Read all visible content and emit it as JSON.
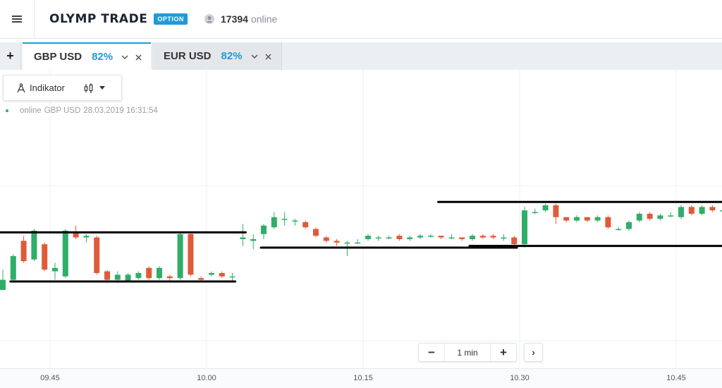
{
  "header": {
    "menu_icon": "hamburger-icon",
    "logo_text": "OLYMP TRADE",
    "logo_badge": "OPTION",
    "online_icon": "user-icon",
    "online_count": "17394",
    "online_label": "online"
  },
  "tabs": {
    "add_label": "+",
    "items": [
      {
        "pair": "GBP USD",
        "payout": "82%",
        "active": true
      },
      {
        "pair": "EUR USD",
        "payout": "82%",
        "active": false
      }
    ],
    "chevron_icon": "chevron-down-icon",
    "close_icon": "close-icon"
  },
  "toolbar": {
    "indicator_label": "Indikator",
    "indicator_icon": "compass-icon",
    "chart_type_icon": "candlestick-icon"
  },
  "info": {
    "status": "online",
    "pair": "GBP USD",
    "datetime": "28.03.2019 16:31:54"
  },
  "zoom": {
    "minus_label": "−",
    "timeframe": "1 min",
    "plus_label": "+",
    "next_label": "›"
  },
  "colors": {
    "accent": "#1f9ad6",
    "bull": "#2fae6a",
    "bear": "#e05a3a",
    "support_resistance": "#000000"
  },
  "chart_data": {
    "type": "candlestick",
    "pair": "GBP USD",
    "timeframe": "1 min",
    "x_ticks": [
      "09.45",
      "10.00",
      "10.15",
      "10.30",
      "10.45"
    ],
    "ylim": [
      0,
      100
    ],
    "candles": [
      [
        20,
        26,
        21,
        32
      ],
      [
        26,
        40,
        25,
        41
      ],
      [
        49,
        37,
        36,
        52
      ],
      [
        38,
        55,
        37,
        56
      ],
      [
        47,
        32,
        31,
        48
      ],
      [
        31,
        33,
        26,
        36
      ],
      [
        28,
        55,
        27,
        56
      ],
      [
        54,
        51,
        50,
        58
      ],
      [
        51,
        52,
        48,
        53
      ],
      [
        51,
        30,
        29,
        52
      ],
      [
        31,
        26,
        24,
        32
      ],
      [
        26,
        29,
        24,
        31
      ],
      [
        25,
        29,
        25,
        30
      ],
      [
        27,
        30,
        26,
        31
      ],
      [
        33,
        27,
        26,
        34
      ],
      [
        27,
        33,
        26,
        34
      ],
      [
        28,
        27,
        25,
        29
      ],
      [
        27,
        53,
        26,
        54
      ],
      [
        53,
        29,
        28,
        54
      ],
      [
        27,
        26,
        25,
        28
      ],
      [
        29,
        30,
        28,
        31
      ],
      [
        30,
        28,
        27,
        31
      ],
      [
        28,
        28,
        25,
        30
      ],
      [
        50,
        51,
        46,
        59
      ],
      [
        49,
        50,
        44,
        53
      ],
      [
        53,
        58,
        50,
        59
      ],
      [
        57,
        63,
        56,
        66
      ],
      [
        62,
        62,
        58,
        66
      ],
      [
        61,
        61,
        58,
        62
      ],
      [
        60,
        57,
        56,
        61
      ],
      [
        56,
        52,
        51,
        57
      ],
      [
        51,
        49,
        48,
        52
      ],
      [
        49,
        48,
        46,
        50
      ],
      [
        48,
        48,
        40,
        49
      ],
      [
        48,
        48,
        48,
        50
      ],
      [
        50,
        52,
        49,
        53
      ],
      [
        51,
        51,
        49,
        52
      ],
      [
        51,
        51,
        50,
        52
      ],
      [
        52,
        50,
        49,
        53
      ],
      [
        50,
        51,
        49,
        52
      ],
      [
        51,
        52,
        50,
        53
      ],
      [
        52,
        52,
        51,
        53
      ],
      [
        52,
        51,
        50,
        52
      ],
      [
        51,
        51,
        50,
        53
      ],
      [
        51,
        50,
        49,
        51
      ],
      [
        50,
        52,
        49,
        53
      ],
      [
        52,
        51,
        50,
        53
      ],
      [
        52,
        51,
        50,
        53
      ],
      [
        51,
        51,
        49,
        53
      ],
      [
        51,
        47,
        46,
        52
      ],
      [
        47,
        67,
        45,
        69
      ],
      [
        66,
        66,
        65,
        68
      ],
      [
        67,
        70,
        66,
        71
      ],
      [
        70,
        63,
        59,
        71
      ],
      [
        63,
        61,
        60,
        63
      ],
      [
        61,
        63,
        60,
        64
      ],
      [
        63,
        61,
        60,
        63
      ],
      [
        61,
        63,
        60,
        64
      ],
      [
        63,
        57,
        56,
        64
      ],
      [
        56,
        56,
        55,
        57
      ],
      [
        56,
        60,
        55,
        61
      ],
      [
        61,
        65,
        60,
        66
      ],
      [
        65,
        62,
        61,
        66
      ],
      [
        62,
        64,
        61,
        65
      ],
      [
        64,
        64,
        63,
        66
      ],
      [
        63,
        69,
        62,
        70
      ],
      [
        69,
        65,
        64,
        70
      ],
      [
        65,
        69,
        64,
        70
      ],
      [
        69,
        67,
        66,
        70
      ],
      [
        67,
        67,
        62,
        68
      ],
      [
        66,
        70,
        65,
        71
      ],
      [
        70,
        59,
        58,
        71
      ],
      [
        59,
        56,
        55,
        60
      ],
      [
        56,
        61,
        55,
        62
      ],
      [
        60,
        64,
        59,
        65
      ]
    ],
    "lines": [
      {
        "name": "resistance-line-1",
        "y": 54,
        "x_from": 0,
        "x_to": 23
      },
      {
        "name": "support-line-1",
        "y": 25,
        "x_from": 1,
        "x_to": 22
      },
      {
        "name": "support-line-2",
        "y": 45,
        "x_from": 25,
        "x_to": 49
      },
      {
        "name": "resistance-line-2",
        "y": 72,
        "x_from": 42,
        "x_to": 75
      },
      {
        "name": "support-line-3",
        "y": 46,
        "x_from": 45,
        "x_to": 73
      }
    ]
  }
}
